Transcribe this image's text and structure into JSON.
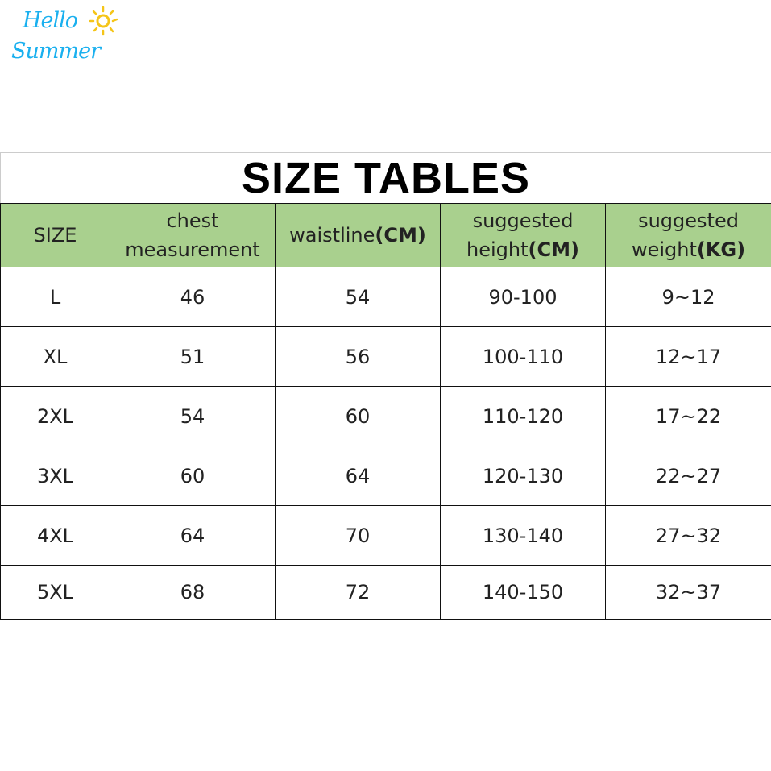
{
  "logo": {
    "text_line1": "Hello",
    "text_line2": "Summer",
    "icon": "sun-icon",
    "color": "#1ab0ef"
  },
  "title": "SIZE TABLES",
  "header_color": "#a9d08e",
  "headers": [
    {
      "text": "SIZE",
      "bold": ""
    },
    {
      "text": "chest measurement",
      "bold": ""
    },
    {
      "text": "waistline",
      "bold": "(CM)"
    },
    {
      "text": "suggested height",
      "bold": "(CM)"
    },
    {
      "text": "suggested weight",
      "bold": "(KG)"
    }
  ],
  "rows": [
    [
      "L",
      "46",
      "54",
      "90-100",
      "9~12"
    ],
    [
      "XL",
      "51",
      "56",
      "100-110",
      "12~17"
    ],
    [
      "2XL",
      "54",
      "60",
      "110-120",
      "17~22"
    ],
    [
      "3XL",
      "60",
      "64",
      "120-130",
      "22~27"
    ],
    [
      "4XL",
      "64",
      "70",
      "130-140",
      "27~32"
    ],
    [
      "5XL",
      "68",
      "72",
      "140-150",
      "32~37"
    ]
  ]
}
